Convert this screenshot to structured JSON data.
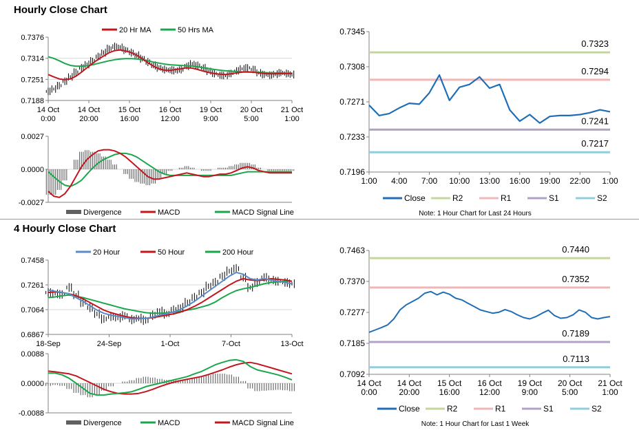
{
  "sections": [
    {
      "title": "Hourly Close Chart"
    },
    {
      "title": "4 Hourly Close Chart"
    }
  ],
  "colors": {
    "close": "#1f6eb5",
    "ma_red": "#c0161c",
    "ma_green": "#1aa64b",
    "ma_blue": "#5b8ac6",
    "r2": "#c3d69b",
    "r1": "#efb7b7",
    "s1": "#b1a0c7",
    "s2": "#92cddc",
    "divergence": "#606060",
    "axis": "#808080",
    "grid": "#d9d9d9"
  },
  "chart_data": [
    {
      "id": "hourly_price",
      "type": "line",
      "ylim": [
        0.7188,
        0.7376
      ],
      "yticks": [
        "0.7376",
        "0.7314",
        "0.7251",
        "0.7188"
      ],
      "xticks": [
        "14 Oct\n0:00",
        "14 Oct\n20:00",
        "15 Oct\n16:00",
        "16 Oct\n12:00",
        "19 Oct\n9:00",
        "20 Oct\n5:00",
        "21 Oct\n1:00"
      ],
      "legend": [
        "20 Hr MA",
        "50 Hrs MA"
      ],
      "price": [
        0.7215,
        0.7222,
        0.7232,
        0.7245,
        0.7258,
        0.7272,
        0.7285,
        0.7295,
        0.7305,
        0.7318,
        0.733,
        0.7342,
        0.7348,
        0.7345,
        0.7338,
        0.733,
        0.7322,
        0.7312,
        0.7302,
        0.7292,
        0.7285,
        0.728,
        0.7278,
        0.7277,
        0.728,
        0.729,
        0.7296,
        0.7292,
        0.7285,
        0.7275,
        0.7268,
        0.7263,
        0.7262,
        0.7268,
        0.7276,
        0.7282,
        0.7285,
        0.728,
        0.727,
        0.7265,
        0.7263,
        0.7266,
        0.727,
        0.7268,
        0.7265
      ],
      "ma20": [
        0.7265,
        0.7258,
        0.7252,
        0.725,
        0.7252,
        0.726,
        0.7272,
        0.7285,
        0.7298,
        0.731,
        0.732,
        0.733,
        0.7336,
        0.7338,
        0.7335,
        0.733,
        0.7322,
        0.7312,
        0.73,
        0.729,
        0.7282,
        0.7278,
        0.7277,
        0.728,
        0.7282,
        0.7285,
        0.7284,
        0.728,
        0.7275,
        0.7271,
        0.7268,
        0.7266,
        0.7265,
        0.7267,
        0.727,
        0.7272,
        0.7273,
        0.7272,
        0.727,
        0.7268,
        0.7267,
        0.7267,
        0.7268,
        0.7268,
        0.7268
      ],
      "ma50": [
        0.7318,
        0.7313,
        0.7306,
        0.7298,
        0.7292,
        0.729,
        0.729,
        0.7291,
        0.7294,
        0.7298,
        0.7302,
        0.7306,
        0.7309,
        0.7311,
        0.7312,
        0.7312,
        0.7311,
        0.7309,
        0.7306,
        0.7302,
        0.7299,
        0.7296,
        0.7294,
        0.7293,
        0.7292,
        0.7291,
        0.729,
        0.7288,
        0.7285,
        0.7283,
        0.728,
        0.7278,
        0.7276,
        0.7275,
        0.7274,
        0.7273,
        0.7272,
        0.7272,
        0.7271,
        0.7271,
        0.727,
        0.727,
        0.727,
        0.7269,
        0.7269
      ]
    },
    {
      "id": "hourly_macd",
      "type": "line",
      "ylim": [
        -0.0027,
        0.0027
      ],
      "yticks": [
        "0.0027",
        "0.0000",
        "-0.0027"
      ],
      "legend": [
        "Divergence",
        "MACD",
        "MACD Signal Line"
      ],
      "macd": [
        -0.0018,
        -0.0022,
        -0.0023,
        -0.002,
        -0.0014,
        -0.0006,
        0.0002,
        0.0008,
        0.0012,
        0.0015,
        0.0016,
        0.0016,
        0.0015,
        0.0013,
        0.001,
        0.0006,
        0.0002,
        -0.0002,
        -0.0006,
        -0.0008,
        -0.0008,
        -0.0007,
        -0.0006,
        -0.0005,
        -0.0004,
        -0.0003,
        -0.0004,
        -0.0005,
        -0.0006,
        -0.0006,
        -0.0005,
        -0.0004,
        -0.0004,
        -0.0003,
        -0.0001,
        0.0001,
        0.0002,
        0.0001,
        -0.0001,
        -0.0002,
        -0.0003,
        -0.0003,
        -0.0003,
        -0.0003,
        -0.0003
      ],
      "signal": [
        -0.0002,
        -0.0006,
        -0.001,
        -0.0013,
        -0.0014,
        -0.0012,
        -0.0009,
        -0.0004,
        0.0001,
        0.0005,
        0.0008,
        0.001,
        0.0012,
        0.0013,
        0.0013,
        0.0012,
        0.001,
        0.0007,
        0.0004,
        0.0001,
        -0.0002,
        -0.0004,
        -0.0005,
        -0.0005,
        -0.0005,
        -0.0005,
        -0.0005,
        -0.0005,
        -0.0005,
        -0.0005,
        -0.0005,
        -0.0005,
        -0.0005,
        -0.0005,
        -0.0004,
        -0.0003,
        -0.0002,
        -0.0002,
        -0.0002,
        -0.0002,
        -0.0002,
        -0.0002,
        -0.0002,
        -0.0002,
        -0.0002
      ]
    },
    {
      "id": "hourly_pivot",
      "type": "line",
      "ylim": [
        0.7196,
        0.7345
      ],
      "yticks": [
        "0.7345",
        "0.7308",
        "0.7271",
        "0.7233",
        "0.7196"
      ],
      "xticks": [
        "1:00",
        "4:00",
        "7:00",
        "10:00",
        "13:00",
        "16:00",
        "19:00",
        "22:00",
        "1:00"
      ],
      "legend": [
        "Close",
        "R2",
        "R1",
        "S1",
        "S2"
      ],
      "note": "Note: 1 Hour Chart for Last 24 Hours",
      "close": [
        0.7267,
        0.7256,
        0.7258,
        0.7264,
        0.7269,
        0.7268,
        0.728,
        0.7299,
        0.7272,
        0.7286,
        0.7289,
        0.7297,
        0.7285,
        0.7289,
        0.7262,
        0.725,
        0.7257,
        0.7248,
        0.7255,
        0.7256,
        0.7256,
        0.7257,
        0.7259,
        0.7262,
        0.726
      ],
      "levels": [
        {
          "name": "R2",
          "value": 0.7323,
          "label": "0.7323"
        },
        {
          "name": "R1",
          "value": 0.7294,
          "label": "0.7294"
        },
        {
          "name": "S1",
          "value": 0.7241,
          "label": "0.7241"
        },
        {
          "name": "S2",
          "value": 0.7217,
          "label": "0.7217"
        }
      ]
    },
    {
      "id": "4hourly_price",
      "type": "line",
      "ylim": [
        0.6867,
        0.7458
      ],
      "yticks": [
        "0.7458",
        "0.7261",
        "0.7064",
        "0.6867"
      ],
      "xticks": [
        "18-Sep",
        "24-Sep",
        "1-Oct",
        "7-Oct",
        "13-Oct"
      ],
      "legend": [
        "20 Hour",
        "50 Hour",
        "200 Hour"
      ],
      "price": [
        0.72,
        0.719,
        0.7185,
        0.724,
        0.718,
        0.712,
        0.708,
        0.703,
        0.699,
        0.701,
        0.7,
        0.7015,
        0.6985,
        0.6995,
        0.698,
        0.702,
        0.705,
        0.703,
        0.706,
        0.708,
        0.712,
        0.716,
        0.72,
        0.725,
        0.728,
        0.733,
        0.737,
        0.739,
        0.732,
        0.724,
        0.728,
        0.732,
        0.73,
        0.729,
        0.728,
        0.727
      ],
      "ma20": [
        0.722,
        0.721,
        0.72,
        0.719,
        0.716,
        0.713,
        0.7095,
        0.706,
        0.7035,
        0.702,
        0.701,
        0.7,
        0.699,
        0.6992,
        0.6995,
        0.7005,
        0.702,
        0.7032,
        0.7045,
        0.7065,
        0.7095,
        0.713,
        0.717,
        0.721,
        0.725,
        0.729,
        0.733,
        0.736,
        0.7345,
        0.731,
        0.73,
        0.731,
        0.73,
        0.729,
        0.728,
        0.727
      ],
      "ma50": [
        0.72,
        0.7205,
        0.72,
        0.719,
        0.7175,
        0.715,
        0.712,
        0.709,
        0.706,
        0.704,
        0.7025,
        0.701,
        0.7,
        0.6995,
        0.6995,
        0.7,
        0.701,
        0.702,
        0.703,
        0.7045,
        0.7065,
        0.709,
        0.712,
        0.7155,
        0.719,
        0.7225,
        0.726,
        0.729,
        0.731,
        0.73,
        0.7295,
        0.73,
        0.731,
        0.7305,
        0.73,
        0.729
      ],
      "ma200": [
        0.716,
        0.7165,
        0.7175,
        0.718,
        0.717,
        0.716,
        0.7145,
        0.713,
        0.7115,
        0.71,
        0.7085,
        0.707,
        0.706,
        0.705,
        0.704,
        0.7035,
        0.7035,
        0.7038,
        0.7045,
        0.705,
        0.706,
        0.707,
        0.7085,
        0.71,
        0.7125,
        0.716,
        0.719,
        0.7215,
        0.723,
        0.724,
        0.7255,
        0.727,
        0.728,
        0.7285,
        0.729,
        0.729
      ]
    },
    {
      "id": "4hourly_macd",
      "type": "line",
      "ylim": [
        -0.0088,
        0.0088
      ],
      "yticks": [
        "0.0088",
        "0.0000",
        "-0.0088"
      ],
      "legend": [
        "Divergence",
        "MACD",
        "MACD Signal Line"
      ],
      "macd": [
        0.003,
        0.003,
        0.0025,
        0.0015,
        0.0,
        -0.0015,
        -0.003,
        -0.0035,
        -0.0035,
        -0.0032,
        -0.003,
        -0.0028,
        -0.0025,
        -0.0018,
        -0.001,
        -0.0005,
        0.0,
        0.0005,
        0.001,
        0.0015,
        0.002,
        0.0028,
        0.0035,
        0.0045,
        0.0055,
        0.0062,
        0.0068,
        0.007,
        0.0065,
        0.005,
        0.004,
        0.0035,
        0.003,
        0.0025,
        0.0018,
        0.001
      ],
      "signal": [
        0.0036,
        0.0034,
        0.0031,
        0.0028,
        0.0022,
        0.0012,
        0.0002,
        -0.0008,
        -0.0018,
        -0.0025,
        -0.003,
        -0.0032,
        -0.0032,
        -0.003,
        -0.0025,
        -0.0018,
        -0.001,
        -0.0003,
        0.0003,
        0.0008,
        0.0012,
        0.0016,
        0.002,
        0.0026,
        0.0033,
        0.004,
        0.0048,
        0.0055,
        0.006,
        0.0062,
        0.0058,
        0.0052,
        0.0046,
        0.004,
        0.0034,
        0.0028
      ]
    },
    {
      "id": "4hourly_pivot",
      "type": "line",
      "ylim": [
        0.7092,
        0.7463
      ],
      "yticks": [
        "0.7463",
        "0.7370",
        "0.7277",
        "0.7185",
        "0.7092"
      ],
      "xticks": [
        "14 Oct\n0:00",
        "14 Oct\n20:00",
        "15 Oct\n16:00",
        "16 Oct\n12:00",
        "19 Oct\n9:00",
        "20 Oct\n5:00",
        "21 Oct\n1:00"
      ],
      "legend": [
        "Close",
        "R2",
        "R1",
        "S1",
        "S2"
      ],
      "note": "Note: 1 Hour Chart for Last 1 Week",
      "close": [
        0.7218,
        0.7225,
        0.7232,
        0.724,
        0.7258,
        0.7285,
        0.73,
        0.731,
        0.732,
        0.7335,
        0.734,
        0.733,
        0.7338,
        0.7332,
        0.732,
        0.7315,
        0.7305,
        0.7295,
        0.7285,
        0.728,
        0.7275,
        0.7278,
        0.7286,
        0.728,
        0.727,
        0.7262,
        0.7258,
        0.7265,
        0.7275,
        0.7284,
        0.7268,
        0.726,
        0.7262,
        0.727,
        0.7285,
        0.7278,
        0.7262,
        0.7258,
        0.7262,
        0.7265
      ],
      "levels": [
        {
          "name": "R2",
          "value": 0.744,
          "label": "0.7440"
        },
        {
          "name": "R1",
          "value": 0.7352,
          "label": "0.7352"
        },
        {
          "name": "S1",
          "value": 0.7189,
          "label": "0.7189"
        },
        {
          "name": "S2",
          "value": 0.7113,
          "label": "0.7113"
        }
      ]
    }
  ]
}
